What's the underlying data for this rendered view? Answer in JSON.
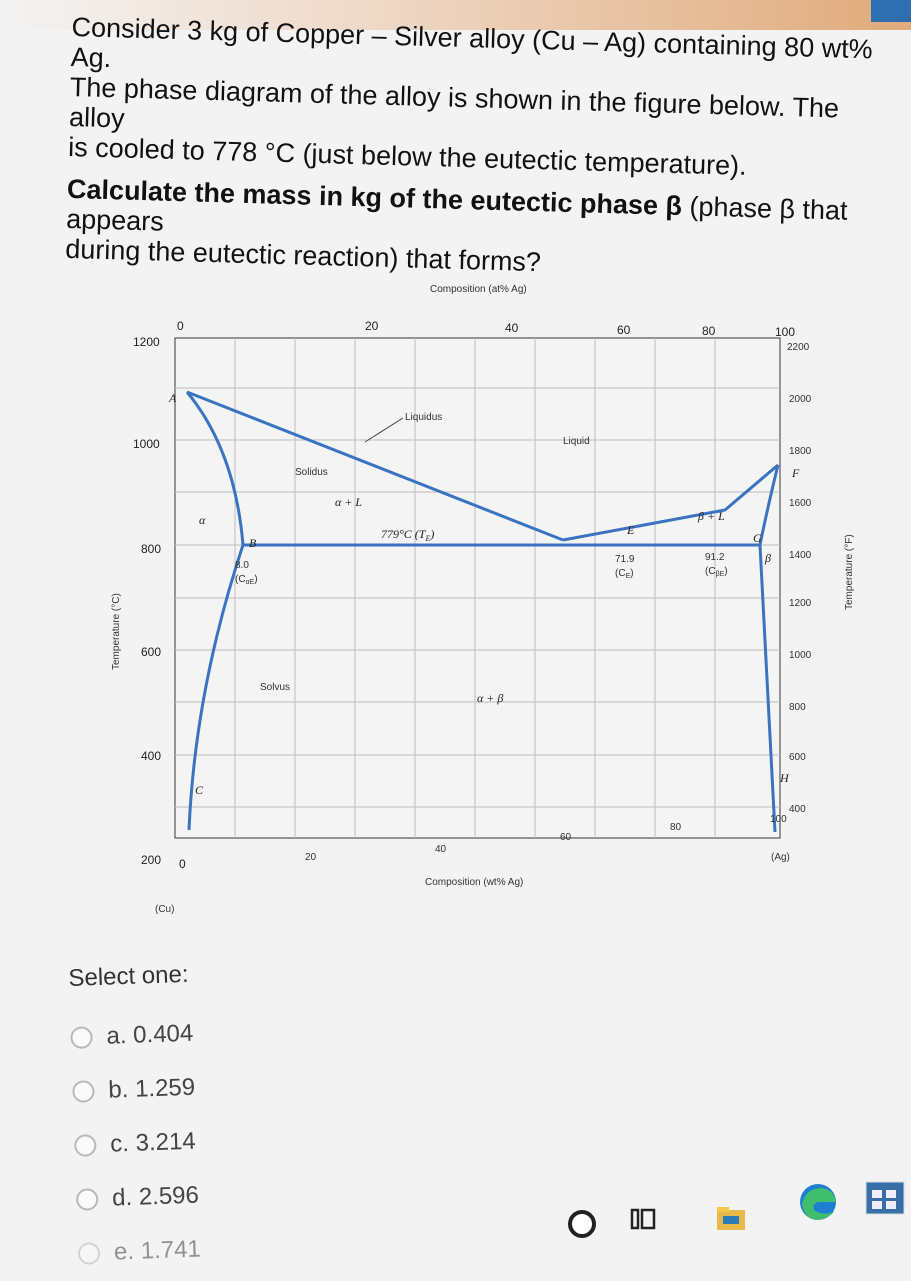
{
  "question": {
    "line1": "Consider 3 kg of Copper – Silver alloy (Cu – Ag) containing 80 wt% Ag.",
    "line2": "The phase diagram of the alloy is shown in the figure below. The alloy",
    "line3": "is cooled to 778 °C (just below the eutectic temperature).",
    "bold": "Calculate the mass in kg of the eutectic phase β",
    "rest1": " (phase β that appears",
    "rest2": "during the eutectic reaction) that forms?"
  },
  "diagram": {
    "top_axis_title": "Composition (at% Ag)",
    "top_ticks": [
      "0",
      "20",
      "40",
      "60",
      "80",
      "100"
    ],
    "left_ticks": [
      "1200",
      "1000",
      "800",
      "600",
      "400",
      "200"
    ],
    "left_label": "Temperature (°C)",
    "right_ticks": [
      "2200",
      "2000",
      "1800",
      "1600",
      "1400",
      "1200",
      "1000",
      "800",
      "600",
      "400"
    ],
    "right_label": "Temperature (°F)",
    "bottom_ticks": [
      "0",
      "20",
      "40",
      "60",
      "80",
      "100"
    ],
    "bottom_axis_title": "Composition (wt% Ag)",
    "bottom_left_end": "(Cu)",
    "bottom_right_end": "(Ag)",
    "labels": {
      "A": "A",
      "F": "F",
      "B": "B",
      "C": "C",
      "E": "E",
      "G": "G",
      "H": "H",
      "liquidus": "Liquidus",
      "solidus": "Solidus",
      "solvus": "Solvus",
      "liquid": "Liquid",
      "alpha": "α",
      "alpha_l": "α + L",
      "beta": "β",
      "beta_l": "β + L",
      "alpha_beta": "α + β",
      "eutectic_temp": "779°C (T",
      "eutectic_temp_sub": "E",
      "comp_alpha": "8.0",
      "comp_alpha_sub": "(C",
      "comp_alpha_sub2": "αE",
      "comp_e": "71.9",
      "comp_e_sub": "(C",
      "comp_e_sub2": "E",
      "comp_beta": "91.2",
      "comp_beta_sub": "(C",
      "comp_beta_sub2": "βE"
    }
  },
  "select": {
    "label": "Select one:",
    "options": [
      "a. 0.404",
      "b. 1.259",
      "c. 3.214",
      "d. 2.596",
      "e. 1.741"
    ]
  },
  "taskbar": {
    "icons": [
      "cortana-icon",
      "task-view-icon",
      "file-explorer-icon",
      "edge-icon",
      "store-icon"
    ]
  }
}
